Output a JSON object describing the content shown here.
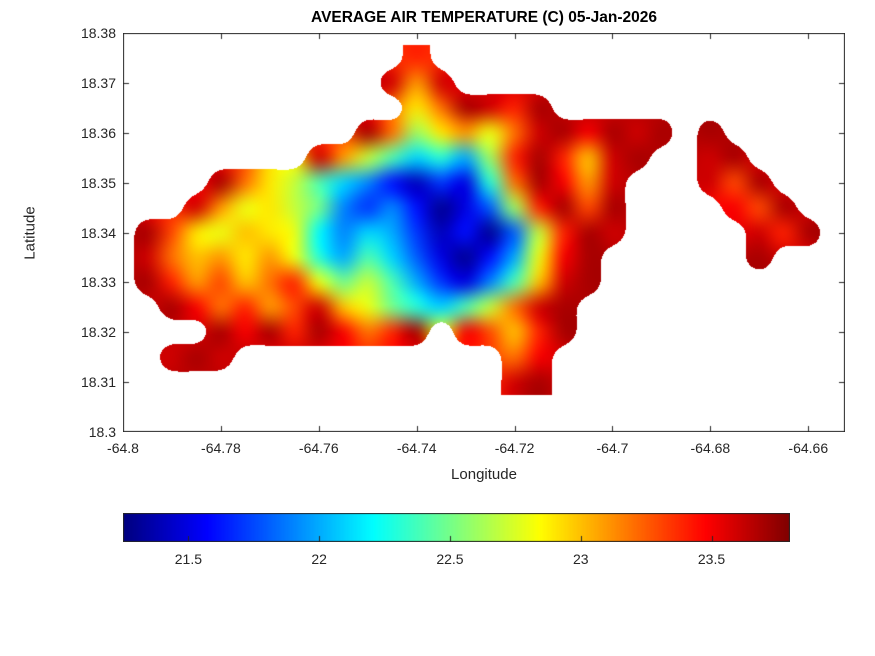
{
  "colors": {
    "axis": "#262626",
    "background": "#ffffff",
    "title": "#000000"
  },
  "chart_data": {
    "type": "heatmap",
    "title": "AVERAGE AIR TEMPERATURE (C) 05-Jan-2026",
    "xlabel": "Longitude",
    "ylabel": "Latitude",
    "xlim": [
      -64.8,
      -64.6525
    ],
    "ylim": [
      18.3,
      18.38
    ],
    "xticks": [
      -64.8,
      -64.78,
      -64.76,
      -64.74,
      -64.72,
      -64.7,
      -64.68,
      -64.66
    ],
    "xtick_labels": [
      "-64.8",
      "-64.78",
      "-64.76",
      "-64.74",
      "-64.72",
      "-64.7",
      "-64.68",
      "-64.66"
    ],
    "yticks": [
      18.3,
      18.31,
      18.32,
      18.33,
      18.34,
      18.35,
      18.36,
      18.37,
      18.38
    ],
    "ytick_labels": [
      "18.3",
      "18.31",
      "18.32",
      "18.33",
      "18.34",
      "18.35",
      "18.36",
      "18.37",
      "18.38"
    ],
    "colormap": "jet",
    "clim": [
      21.25,
      23.8
    ],
    "colorbar_ticks": [
      21.5,
      22,
      22.5,
      23,
      23.5
    ],
    "colorbar_tick_labels": [
      "21.5",
      "22",
      "22.5",
      "23",
      "23.5"
    ],
    "grid": {
      "lon_start": -64.8,
      "lon_step": 0.005,
      "lat_start": 18.375,
      "lat_step": -0.005,
      "values": [
        [
          null,
          null,
          null,
          null,
          null,
          null,
          null,
          null,
          null,
          null,
          null,
          null,
          23.4,
          null,
          null,
          null,
          null,
          null,
          null,
          null,
          null,
          null,
          null,
          null,
          null,
          null,
          null,
          null,
          null,
          null
        ],
        [
          null,
          null,
          null,
          null,
          null,
          null,
          null,
          null,
          null,
          null,
          null,
          23.6,
          23.1,
          23.6,
          null,
          null,
          null,
          null,
          null,
          null,
          null,
          null,
          null,
          null,
          null,
          null,
          null,
          null,
          null,
          null
        ],
        [
          null,
          null,
          null,
          null,
          null,
          null,
          null,
          null,
          null,
          null,
          null,
          null,
          22.9,
          23.2,
          23.7,
          23.6,
          23.4,
          23.7,
          null,
          null,
          null,
          null,
          null,
          null,
          null,
          null,
          null,
          null,
          null,
          null
        ],
        [
          null,
          null,
          null,
          null,
          null,
          null,
          null,
          null,
          null,
          null,
          23.7,
          23.2,
          22.6,
          22.9,
          23.1,
          22.8,
          23.2,
          23.6,
          23.7,
          23.5,
          23.7,
          23.6,
          23.7,
          null,
          23.7,
          null,
          null,
          null,
          null,
          null
        ],
        [
          null,
          null,
          null,
          null,
          null,
          null,
          null,
          null,
          23.6,
          23.1,
          22.7,
          22.4,
          22.1,
          22.3,
          22.0,
          22.6,
          23.4,
          23.7,
          23.4,
          23.0,
          23.6,
          23.7,
          null,
          null,
          23.6,
          23.7,
          null,
          null,
          null,
          null
        ],
        [
          null,
          null,
          null,
          null,
          23.7,
          23.2,
          22.9,
          22.7,
          22.4,
          22.1,
          21.9,
          21.6,
          21.4,
          21.7,
          21.5,
          22.3,
          23.2,
          23.7,
          23.5,
          23.1,
          23.6,
          null,
          null,
          null,
          23.6,
          23.3,
          23.7,
          null,
          null,
          null
        ],
        [
          null,
          null,
          null,
          23.6,
          23.1,
          22.8,
          22.9,
          22.7,
          22.5,
          21.9,
          21.7,
          21.9,
          21.6,
          21.3,
          21.5,
          21.8,
          22.6,
          23.4,
          23.7,
          23.3,
          23.7,
          null,
          null,
          null,
          null,
          23.5,
          23.3,
          23.7,
          null,
          null
        ],
        [
          null,
          23.7,
          23.3,
          22.9,
          22.8,
          23.0,
          22.9,
          22.8,
          22.2,
          21.9,
          22.1,
          22.0,
          21.7,
          21.4,
          21.6,
          21.3,
          21.8,
          22.7,
          23.4,
          23.7,
          23.6,
          null,
          null,
          null,
          null,
          null,
          23.6,
          23.4,
          23.7,
          null
        ],
        [
          null,
          23.6,
          23.2,
          23.0,
          23.1,
          22.9,
          23.1,
          22.8,
          22.3,
          22.0,
          22.4,
          22.1,
          21.8,
          21.5,
          21.3,
          21.6,
          22.0,
          22.8,
          23.5,
          23.7,
          null,
          null,
          null,
          null,
          null,
          null,
          23.7,
          null,
          null,
          null
        ],
        [
          null,
          23.7,
          23.4,
          23.1,
          23.3,
          23.0,
          23.2,
          23.4,
          22.8,
          22.5,
          22.7,
          22.4,
          22.0,
          21.7,
          21.5,
          21.9,
          22.4,
          23.0,
          23.6,
          23.7,
          null,
          null,
          null,
          null,
          null,
          null,
          null,
          null,
          null,
          null
        ],
        [
          null,
          null,
          23.7,
          23.5,
          23.2,
          23.4,
          23.1,
          23.3,
          23.6,
          23.0,
          22.8,
          22.5,
          22.3,
          22.1,
          22.4,
          22.7,
          23.2,
          23.6,
          23.7,
          null,
          null,
          null,
          null,
          null,
          null,
          null,
          null,
          null,
          null,
          null
        ],
        [
          null,
          null,
          null,
          null,
          23.7,
          23.5,
          23.7,
          23.4,
          23.7,
          23.5,
          23.2,
          23.4,
          23.7,
          null,
          23.5,
          23.3,
          23.0,
          23.4,
          23.7,
          null,
          null,
          null,
          null,
          null,
          null,
          null,
          null,
          null,
          null,
          null
        ],
        [
          null,
          null,
          23.6,
          23.7,
          23.6,
          null,
          null,
          null,
          null,
          null,
          null,
          null,
          null,
          null,
          null,
          null,
          23.2,
          23.5,
          null,
          null,
          null,
          null,
          null,
          null,
          null,
          null,
          null,
          null,
          null,
          null
        ],
        [
          null,
          null,
          null,
          null,
          null,
          null,
          null,
          null,
          null,
          null,
          null,
          null,
          null,
          null,
          null,
          null,
          23.6,
          23.7,
          null,
          null,
          null,
          null,
          null,
          null,
          null,
          null,
          null,
          null,
          null,
          null
        ]
      ]
    }
  }
}
